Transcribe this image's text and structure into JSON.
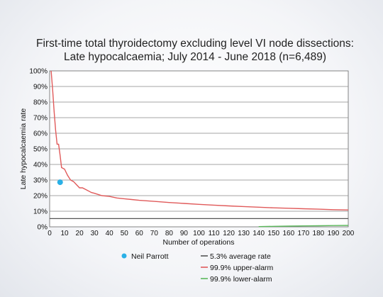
{
  "chart_data": {
    "type": "line",
    "title": "First-time total thyroidectomy excluding level VI node dissections:",
    "subtitle": "Late hypocalcaemia; July 2014 - June 2018 (n=6,489)",
    "xlabel": "Number of operations",
    "ylabel": "Late hypocalcaemia rate",
    "xlim": [
      0,
      200
    ],
    "ylim": [
      0,
      100
    ],
    "x_ticks": [
      "0",
      "10",
      "20",
      "30",
      "40",
      "50",
      "60",
      "70",
      "80",
      "90",
      "100",
      "110",
      "120",
      "130",
      "140",
      "150",
      "160",
      "170",
      "180",
      "190",
      "200"
    ],
    "y_ticks": [
      "0%",
      "10%",
      "20%",
      "30%",
      "40%",
      "50%",
      "60%",
      "70%",
      "80%",
      "90%",
      "100%"
    ],
    "grid": true,
    "average_rate": 5.3,
    "series": [
      {
        "name": "99.9% upper-alarm",
        "color": "#e05a5a",
        "points": [
          [
            1,
            100
          ],
          [
            2,
            88
          ],
          [
            3,
            74
          ],
          [
            4,
            62
          ],
          [
            5,
            53
          ],
          [
            6,
            53
          ],
          [
            7,
            46
          ],
          [
            8,
            38
          ],
          [
            10,
            37
          ],
          [
            12,
            33
          ],
          [
            14,
            30
          ],
          [
            16,
            29
          ],
          [
            18,
            27
          ],
          [
            20,
            25
          ],
          [
            22,
            25
          ],
          [
            25,
            23.5
          ],
          [
            28,
            22
          ],
          [
            30,
            21.5
          ],
          [
            35,
            20
          ],
          [
            40,
            19.5
          ],
          [
            45,
            18.5
          ],
          [
            50,
            18
          ],
          [
            55,
            17.5
          ],
          [
            60,
            17
          ],
          [
            70,
            16.3
          ],
          [
            80,
            15.6
          ],
          [
            90,
            15
          ],
          [
            100,
            14.4
          ],
          [
            110,
            13.9
          ],
          [
            120,
            13.4
          ],
          [
            130,
            13
          ],
          [
            140,
            12.6
          ],
          [
            150,
            12.2
          ],
          [
            160,
            11.9
          ],
          [
            170,
            11.6
          ],
          [
            180,
            11.3
          ],
          [
            190,
            11
          ],
          [
            200,
            10.8
          ]
        ]
      },
      {
        "name": "99.9% lower-alarm",
        "color": "#5cb85c",
        "points": [
          [
            140,
            0.15
          ],
          [
            150,
            0.3
          ],
          [
            160,
            0.45
          ],
          [
            170,
            0.6
          ],
          [
            180,
            0.7
          ],
          [
            190,
            0.8
          ],
          [
            200,
            0.9
          ]
        ]
      }
    ],
    "highlight": {
      "name": "Neil Parrott",
      "x": 7,
      "y": 28.6,
      "color": "#2ab0e6"
    },
    "legend": [
      {
        "label": "Neil Parrott",
        "kind": "dot",
        "color": "#2ab0e6"
      },
      {
        "label": "5.3% average rate",
        "kind": "line",
        "color": "#555555"
      },
      {
        "label": "99.9% upper-alarm",
        "kind": "line",
        "color": "#e05a5a"
      },
      {
        "label": "99.9% lower-alarm",
        "kind": "line",
        "color": "#5cb85c"
      }
    ]
  }
}
